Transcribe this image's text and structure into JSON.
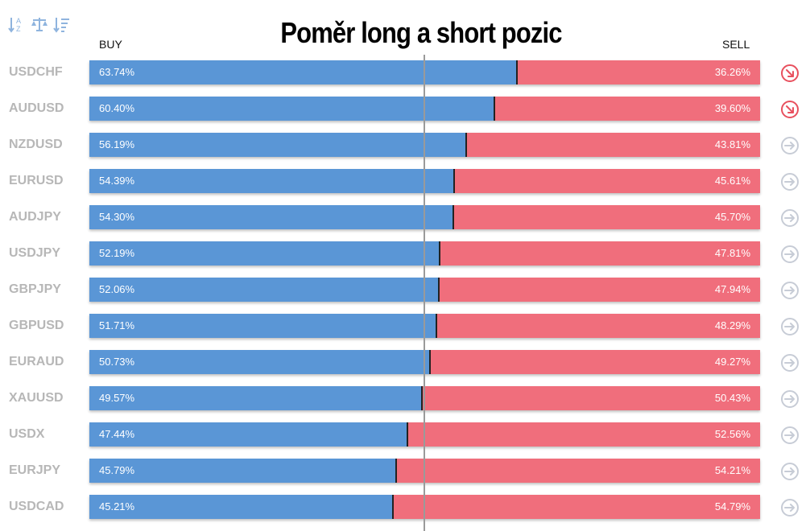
{
  "title": "Poměr long a short pozic",
  "headers": {
    "buy": "BUY",
    "sell": "SELL"
  },
  "toolbar": {
    "icons": [
      "sort-alphabetical-icon",
      "balance-scale-icon",
      "sort-descending-icon"
    ]
  },
  "colors": {
    "buy": "#5a96d6",
    "sell": "#f06e7c",
    "symbol": "#b7b7b7",
    "trend_down": "#e8505e",
    "trend_neutral": "#c7ccd6"
  },
  "chart_data": {
    "type": "bar",
    "stacked": true,
    "orientation": "horizontal",
    "categories": [
      "USDCHF",
      "AUDUSD",
      "NZDUSD",
      "EURUSD",
      "AUDJPY",
      "USDJPY",
      "GBPJPY",
      "GBPUSD",
      "EURAUD",
      "XAUUSD",
      "USDX",
      "EURJPY",
      "USDCAD"
    ],
    "series": [
      {
        "name": "BUY",
        "values": [
          63.74,
          60.4,
          56.19,
          54.39,
          54.3,
          52.19,
          52.06,
          51.71,
          50.73,
          49.57,
          47.44,
          45.79,
          45.21
        ]
      },
      {
        "name": "SELL",
        "values": [
          36.26,
          39.6,
          43.81,
          45.61,
          45.7,
          47.81,
          47.94,
          48.29,
          49.27,
          50.43,
          52.56,
          54.21,
          54.79
        ]
      }
    ],
    "labels_buy": [
      "63.74%",
      "60.40%",
      "56.19%",
      "54.39%",
      "54.30%",
      "52.19%",
      "52.06%",
      "51.71%",
      "50.73%",
      "49.57%",
      "47.44%",
      "45.79%",
      "45.21%"
    ],
    "labels_sell": [
      "36.26%",
      "39.60%",
      "43.81%",
      "45.61%",
      "45.70%",
      "47.81%",
      "47.94%",
      "48.29%",
      "49.27%",
      "50.43%",
      "52.56%",
      "54.21%",
      "54.79%"
    ],
    "trend": [
      "down",
      "down",
      "neutral",
      "neutral",
      "neutral",
      "neutral",
      "neutral",
      "neutral",
      "neutral",
      "neutral",
      "neutral",
      "neutral",
      "neutral"
    ],
    "xlim": [
      0,
      100
    ],
    "reference_line": 50
  }
}
